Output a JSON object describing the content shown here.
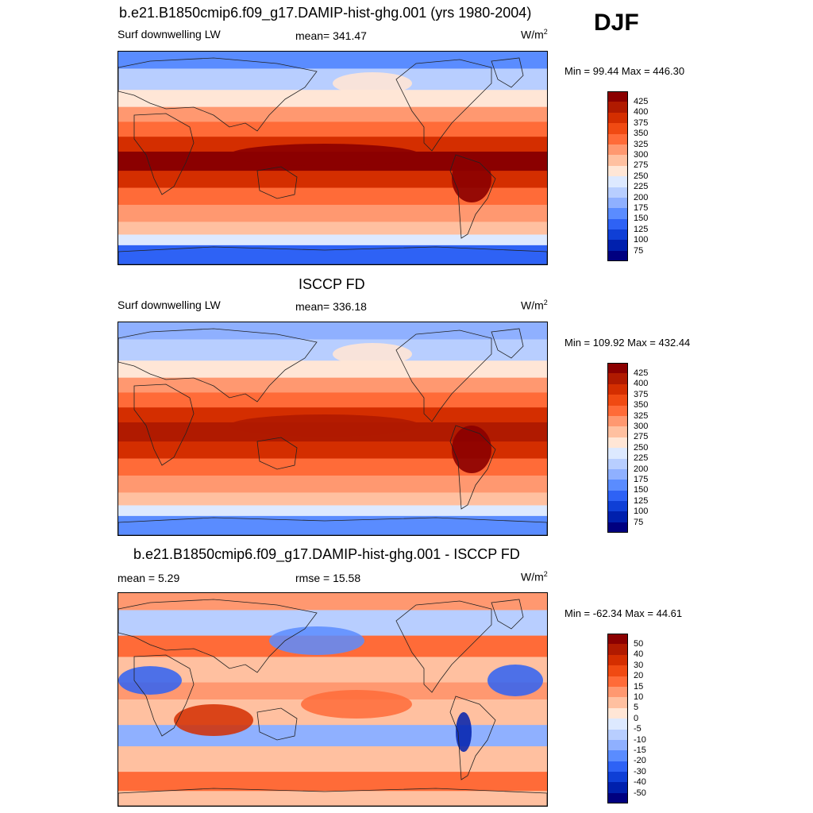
{
  "season": "DJF",
  "panels": [
    {
      "title": "b.e21.B1850cmip6.f09_g17.DAMIP-hist-ghg.001 (yrs 1980-2004)",
      "left_label": "Surf downwelling LW",
      "center_label": "mean= 341.47",
      "units": "W/m",
      "units_exp": "2",
      "minmax": "Min =  99.44 Max = 446.30",
      "map_kind": "model",
      "colorbar_labels": [
        "425",
        "400",
        "375",
        "350",
        "325",
        "300",
        "275",
        "250",
        "225",
        "200",
        "175",
        "150",
        "125",
        "100",
        "75"
      ]
    },
    {
      "title": "ISCCP FD",
      "left_label": "Surf downwelling LW",
      "center_label": "mean= 336.18",
      "units": "W/m",
      "units_exp": "2",
      "minmax": "Min = 109.92 Max = 432.44",
      "map_kind": "obs",
      "colorbar_labels": [
        "425",
        "400",
        "375",
        "350",
        "325",
        "300",
        "275",
        "250",
        "225",
        "200",
        "175",
        "150",
        "125",
        "100",
        "75"
      ]
    },
    {
      "title": "b.e21.B1850cmip6.f09_g17.DAMIP-hist-ghg.001 - ISCCP FD",
      "left_label": "mean =   5.29",
      "center_label": "rmse =  15.58",
      "units": "W/m",
      "units_exp": "2",
      "minmax": "Min = -62.34 Max =  44.61",
      "map_kind": "diff",
      "colorbar_labels": [
        "50",
        "40",
        "30",
        "20",
        "15",
        "10",
        "5",
        "0",
        "-5",
        "-10",
        "-15",
        "-20",
        "-30",
        "-40",
        "-50"
      ]
    }
  ],
  "colorbar_colors": [
    "#8b0000",
    "#b01a00",
    "#d42e00",
    "#f04a12",
    "#ff6b38",
    "#ff9870",
    "#ffc0a0",
    "#ffe6d6",
    "#dde9ff",
    "#b8ceff",
    "#8fb0ff",
    "#5a8cff",
    "#2e62f5",
    "#0f3fd6",
    "#0020ad",
    "#000080"
  ],
  "chart_data": [
    {
      "type": "heatmap",
      "title": "b.e21.B1850cmip6.f09_g17.DAMIP-hist-ghg.001 (yrs 1980-2004)",
      "variable": "Surf downwelling LW",
      "mean": 341.47,
      "units": "W/m2",
      "min": 99.44,
      "max": 446.3,
      "levels": [
        75,
        100,
        125,
        150,
        175,
        200,
        225,
        250,
        275,
        300,
        325,
        350,
        375,
        400,
        425
      ]
    },
    {
      "type": "heatmap",
      "title": "ISCCP FD",
      "variable": "Surf downwelling LW",
      "mean": 336.18,
      "units": "W/m2",
      "min": 109.92,
      "max": 432.44,
      "levels": [
        75,
        100,
        125,
        150,
        175,
        200,
        225,
        250,
        275,
        300,
        325,
        350,
        375,
        400,
        425
      ]
    },
    {
      "type": "heatmap",
      "title": "b.e21.B1850cmip6.f09_g17.DAMIP-hist-ghg.001 - ISCCP FD",
      "mean": 5.29,
      "rmse": 15.58,
      "units": "W/m2",
      "min": -62.34,
      "max": 44.61,
      "levels": [
        -50,
        -40,
        -30,
        -20,
        -15,
        -10,
        -5,
        0,
        5,
        10,
        15,
        20,
        30,
        40,
        50
      ]
    }
  ]
}
